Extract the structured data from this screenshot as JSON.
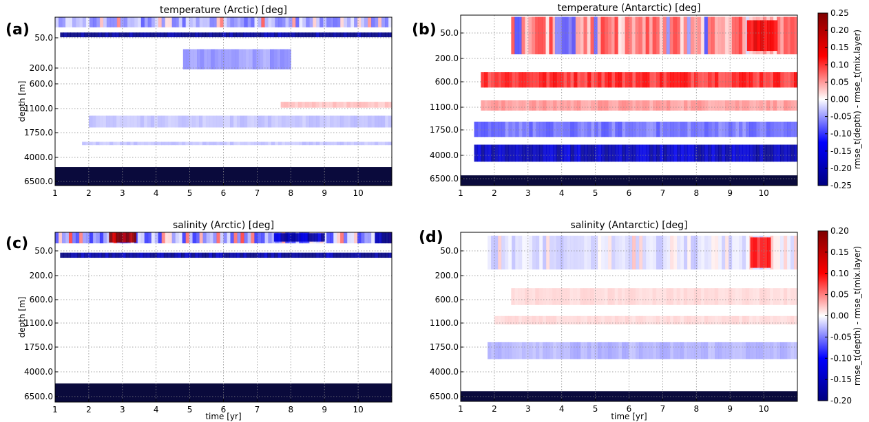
{
  "chart_data": [
    {
      "id": "a",
      "type": "heatmap",
      "panel_label": "(a)",
      "title": "temperature (Arctic) [deg]",
      "xlabel": "",
      "ylabel": "depth [m]",
      "xlim": [
        1,
        11
      ],
      "x_ticks": [
        "1",
        "2",
        "3",
        "4",
        "5",
        "6",
        "7",
        "8",
        "9",
        "10"
      ],
      "y_ticks": [
        "50.0",
        "200.0",
        "600.0",
        "1100.0",
        "1750.0",
        "4000.0",
        "6500.0"
      ],
      "colorbar": "temperature",
      "features": [
        {
          "depth_frac": 0.105,
          "thickness": 0.028,
          "value": -0.24,
          "x0": 1.15,
          "x1": 11
        },
        {
          "depth_frac": 0.03,
          "thickness": 0.06,
          "value": -0.05,
          "x0": 1,
          "x1": 11,
          "noisy": true
        },
        {
          "depth_frac": 0.25,
          "thickness": 0.12,
          "value": -0.05,
          "x0": 4.8,
          "x1": 8.0
        },
        {
          "depth_frac": 0.52,
          "thickness": 0.035,
          "value": 0.03,
          "x0": 7.7,
          "x1": 11
        },
        {
          "depth_frac": 0.62,
          "thickness": 0.07,
          "value": -0.03,
          "x0": 2.0,
          "x1": 11
        },
        {
          "depth_frac": 0.75,
          "thickness": 0.02,
          "value": -0.03,
          "x0": 1.8,
          "x1": 11
        }
      ],
      "bottom_mask_frac": 0.11
    },
    {
      "id": "b",
      "type": "heatmap",
      "panel_label": "(b)",
      "title": "temperature (Antarctic) [deg]",
      "xlabel": "",
      "ylabel": "",
      "xlim": [
        1,
        11
      ],
      "x_ticks": [
        "1",
        "2",
        "3",
        "4",
        "5",
        "6",
        "7",
        "8",
        "9",
        "10"
      ],
      "y_ticks": [
        "50.0",
        "200.0",
        "600.0",
        "1100.0",
        "1750.0",
        "4000.0",
        "6500.0"
      ],
      "colorbar": "temperature",
      "features": [
        {
          "depth_frac": 0.12,
          "thickness": 0.22,
          "value": 0.06,
          "x0": 2.5,
          "x1": 11,
          "noisy": true
        },
        {
          "depth_frac": 0.12,
          "thickness": 0.22,
          "value": -0.08,
          "x0": 3.8,
          "x1": 4.4
        },
        {
          "depth_frac": 0.12,
          "thickness": 0.18,
          "value": 0.14,
          "x0": 9.5,
          "x1": 10.4
        },
        {
          "depth_frac": 0.38,
          "thickness": 0.09,
          "value": 0.11,
          "x0": 1.6,
          "x1": 11
        },
        {
          "depth_frac": 0.53,
          "thickness": 0.06,
          "value": 0.05,
          "x0": 1.6,
          "x1": 11
        },
        {
          "depth_frac": 0.67,
          "thickness": 0.09,
          "value": -0.07,
          "x0": 1.4,
          "x1": 11
        },
        {
          "depth_frac": 0.81,
          "thickness": 0.1,
          "value": -0.19,
          "x0": 1.4,
          "x1": 11
        }
      ],
      "bottom_mask_frac": 0.06
    },
    {
      "id": "c",
      "type": "heatmap",
      "panel_label": "(c)",
      "title": "salinity (Arctic) [deg]",
      "xlabel": "time [yr]",
      "ylabel": "depth [m]",
      "xlim": [
        1,
        11
      ],
      "x_ticks": [
        "1",
        "2",
        "3",
        "4",
        "5",
        "6",
        "7",
        "8",
        "9",
        "10"
      ],
      "y_ticks": [
        "50.0",
        "200.0",
        "600.0",
        "1100.0",
        "1750.0",
        "4000.0",
        "6500.0"
      ],
      "colorbar": "salinity",
      "features": [
        {
          "depth_frac": 0.03,
          "thickness": 0.07,
          "value": -0.05,
          "x0": 1,
          "x1": 11,
          "noisy": true
        },
        {
          "depth_frac": 0.03,
          "thickness": 0.06,
          "value": 0.17,
          "x0": 2.6,
          "x1": 3.4
        },
        {
          "depth_frac": 0.03,
          "thickness": 0.05,
          "value": -0.15,
          "x0": 7.5,
          "x1": 9.0
        },
        {
          "depth_frac": 0.03,
          "thickness": 0.07,
          "value": -0.17,
          "x0": 10.5,
          "x1": 11
        },
        {
          "depth_frac": 0.135,
          "thickness": 0.03,
          "value": -0.18,
          "x0": 1.15,
          "x1": 11
        }
      ],
      "bottom_mask_frac": 0.11
    },
    {
      "id": "d",
      "type": "heatmap",
      "panel_label": "(d)",
      "title": "salinity (Antarctic) [deg]",
      "xlabel": "time [yr]",
      "ylabel": "",
      "xlim": [
        1,
        11
      ],
      "x_ticks": [
        "1",
        "2",
        "3",
        "4",
        "5",
        "6",
        "7",
        "8",
        "9",
        "10"
      ],
      "y_ticks": [
        "50.0",
        "200.0",
        "600.0",
        "1100.0",
        "1750.0",
        "4000.0",
        "6500.0"
      ],
      "colorbar": "salinity",
      "features": [
        {
          "depth_frac": 0.12,
          "thickness": 0.2,
          "value": -0.015,
          "x0": 1.8,
          "x1": 11,
          "noisy": true
        },
        {
          "depth_frac": 0.12,
          "thickness": 0.18,
          "value": 0.08,
          "x0": 9.6,
          "x1": 10.2
        },
        {
          "depth_frac": 0.38,
          "thickness": 0.1,
          "value": 0.015,
          "x0": 2.5,
          "x1": 11
        },
        {
          "depth_frac": 0.52,
          "thickness": 0.05,
          "value": 0.015,
          "x0": 2.0,
          "x1": 11
        },
        {
          "depth_frac": 0.7,
          "thickness": 0.1,
          "value": -0.03,
          "x0": 1.8,
          "x1": 11
        }
      ],
      "bottom_mask_frac": 0.06
    }
  ],
  "colorbars": {
    "temperature": {
      "label": "rmse_t(depth) - rmse_t(mix.layer)",
      "range": [
        -0.25,
        0.25
      ],
      "ticks": [
        "0.25",
        "0.20",
        "0.15",
        "0.10",
        "0.05",
        "0.00",
        "-0.05",
        "-0.10",
        "-0.15",
        "-0.20",
        "-0.25"
      ]
    },
    "salinity": {
      "label": "rmse_t(depth) - rmse_t(mix.layer)",
      "range": [
        -0.2,
        0.2
      ],
      "ticks": [
        "0.20",
        "0.15",
        "0.10",
        "0.05",
        "0.00",
        "-0.05",
        "-0.10",
        "-0.15",
        "-0.20"
      ]
    }
  },
  "colors": {
    "mask": "#0a0a3c",
    "negative_end": "#00007f",
    "negative_mid": "#0000ff",
    "zero": "#ffffff",
    "positive_mid": "#ff0000",
    "positive_end": "#7f0000"
  }
}
